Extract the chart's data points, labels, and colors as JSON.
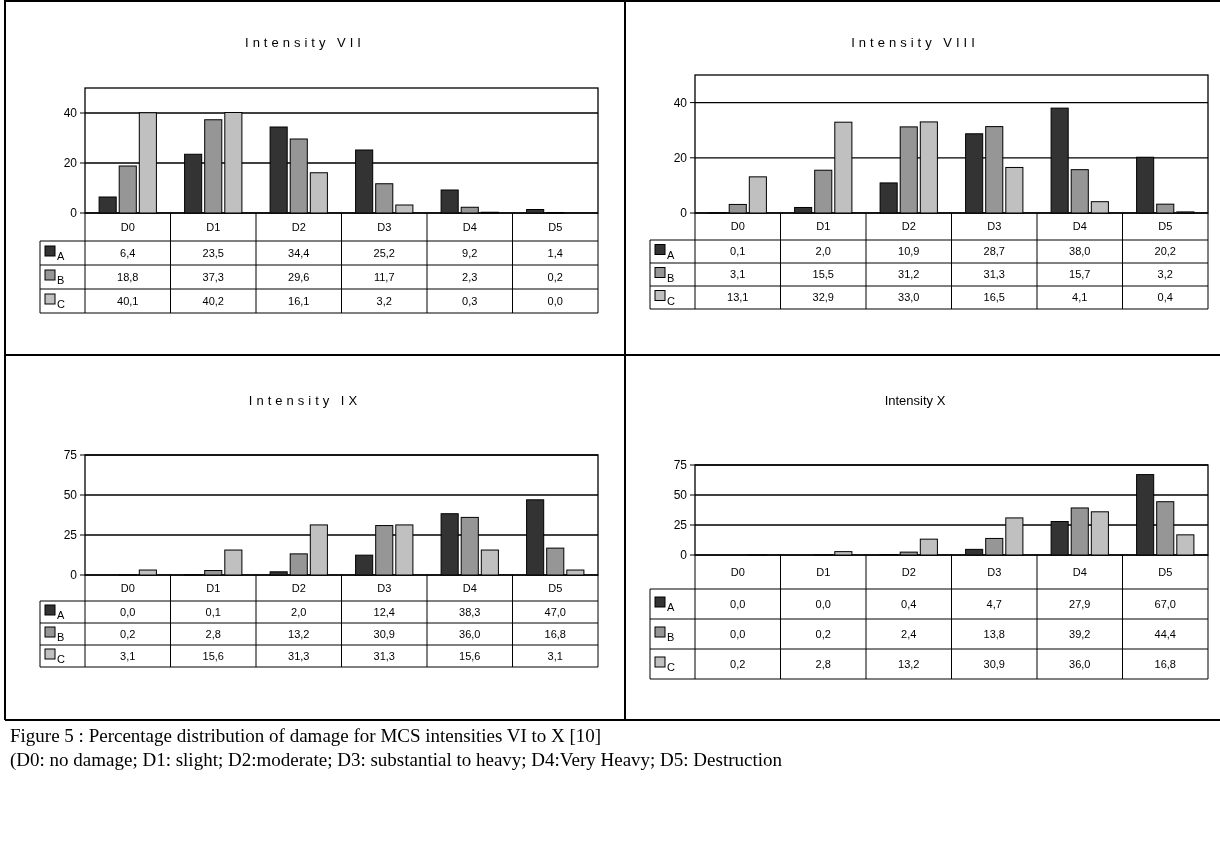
{
  "chart_data": [
    {
      "type": "bar",
      "title": "Intensity VII",
      "categories": [
        "D0",
        "D1",
        "D2",
        "D3",
        "D4",
        "D5"
      ],
      "ylim": [
        0,
        50
      ],
      "yticks": [
        0,
        20,
        40
      ],
      "grid": "y",
      "legend": "bottom",
      "series": [
        {
          "name": "A",
          "color": "#333333",
          "values": [
            6.4,
            23.5,
            34.4,
            25.2,
            9.2,
            1.4
          ],
          "value_labels": [
            "6,4",
            "23,5",
            "34,4",
            "25,2",
            "9,2",
            "1,4"
          ]
        },
        {
          "name": "B",
          "color": "#969696",
          "values": [
            18.8,
            37.3,
            29.6,
            11.7,
            2.3,
            0.2
          ],
          "value_labels": [
            "18,8",
            "37,3",
            "29,6",
            "11,7",
            "2,3",
            "0,2"
          ]
        },
        {
          "name": "C",
          "color": "#c0c0c0",
          "values": [
            40.1,
            40.2,
            16.1,
            3.2,
            0.3,
            0.0
          ],
          "value_labels": [
            "40,1",
            "40,2",
            "16,1",
            "3,2",
            "0,3",
            "0,0"
          ]
        }
      ]
    },
    {
      "type": "bar",
      "title": "Intensity VIII",
      "categories": [
        "D0",
        "D1",
        "D2",
        "D3",
        "D4",
        "D5"
      ],
      "ylim": [
        0,
        50
      ],
      "yticks": [
        0,
        20,
        40
      ],
      "grid": "y",
      "legend": "bottom",
      "series": [
        {
          "name": "A",
          "color": "#333333",
          "values": [
            0.1,
            2.0,
            10.9,
            28.7,
            38.0,
            20.2
          ],
          "value_labels": [
            "0,1",
            "2,0",
            "10,9",
            "28,7",
            "38,0",
            "20,2"
          ]
        },
        {
          "name": "B",
          "color": "#969696",
          "values": [
            3.1,
            15.5,
            31.2,
            31.3,
            15.7,
            3.2
          ],
          "value_labels": [
            "3,1",
            "15,5",
            "31,2",
            "31,3",
            "15,7",
            "3,2"
          ]
        },
        {
          "name": "C",
          "color": "#c0c0c0",
          "values": [
            13.1,
            32.9,
            33.0,
            16.5,
            4.1,
            0.4
          ],
          "value_labels": [
            "13,1",
            "32,9",
            "33,0",
            "16,5",
            "4,1",
            "0,4"
          ]
        }
      ]
    },
    {
      "type": "bar",
      "title": "Intensity IX",
      "categories": [
        "D0",
        "D1",
        "D2",
        "D3",
        "D4",
        "D5"
      ],
      "ylim": [
        0,
        75
      ],
      "yticks": [
        0,
        25,
        50,
        75
      ],
      "grid": "y",
      "legend": "bottom",
      "series": [
        {
          "name": "A",
          "color": "#333333",
          "values": [
            0.0,
            0.1,
            2.0,
            12.4,
            38.3,
            47.0
          ],
          "value_labels": [
            "0,0",
            "0,1",
            "2,0",
            "12,4",
            "38,3",
            "47,0"
          ]
        },
        {
          "name": "B",
          "color": "#969696",
          "values": [
            0.2,
            2.8,
            13.2,
            30.9,
            36.0,
            16.8
          ],
          "value_labels": [
            "0,2",
            "2,8",
            "13,2",
            "30,9",
            "36,0",
            "16,8"
          ]
        },
        {
          "name": "C",
          "color": "#c0c0c0",
          "values": [
            3.1,
            15.6,
            31.3,
            31.3,
            15.6,
            3.1
          ],
          "value_labels": [
            "3,1",
            "15,6",
            "31,3",
            "31,3",
            "15,6",
            "3,1"
          ]
        }
      ]
    },
    {
      "type": "bar",
      "title": "Intensity X",
      "categories": [
        "D0",
        "D1",
        "D2",
        "D3",
        "D4",
        "D5"
      ],
      "ylim": [
        0,
        75
      ],
      "yticks": [
        0,
        25,
        50,
        75
      ],
      "grid": "y",
      "legend": "bottom",
      "series": [
        {
          "name": "A",
          "color": "#333333",
          "values": [
            0.0,
            0.0,
            0.4,
            4.7,
            27.9,
            67.0
          ],
          "value_labels": [
            "0,0",
            "0,0",
            "0,4",
            "4,7",
            "27,9",
            "67,0"
          ]
        },
        {
          "name": "B",
          "color": "#969696",
          "values": [
            0.0,
            0.2,
            2.4,
            13.8,
            39.2,
            44.4
          ],
          "value_labels": [
            "0,0",
            "0,2",
            "2,4",
            "13,8",
            "39,2",
            "44,4"
          ]
        },
        {
          "name": "C",
          "color": "#c0c0c0",
          "values": [
            0.2,
            2.8,
            13.2,
            30.9,
            36.0,
            16.8
          ],
          "value_labels": [
            "0,2",
            "2,8",
            "13,2",
            "30,9",
            "36,0",
            "16,8"
          ]
        }
      ],
      "annotations": [
        "Figure 5 :  Percentage distribution of damage for MCS intensities VI to X   [10]",
        "(D0: no damage; D1: slight; D2:moderate; D3: substantial to heavy; D4:Very Heavy; D5: Destruction"
      ]
    }
  ]
}
